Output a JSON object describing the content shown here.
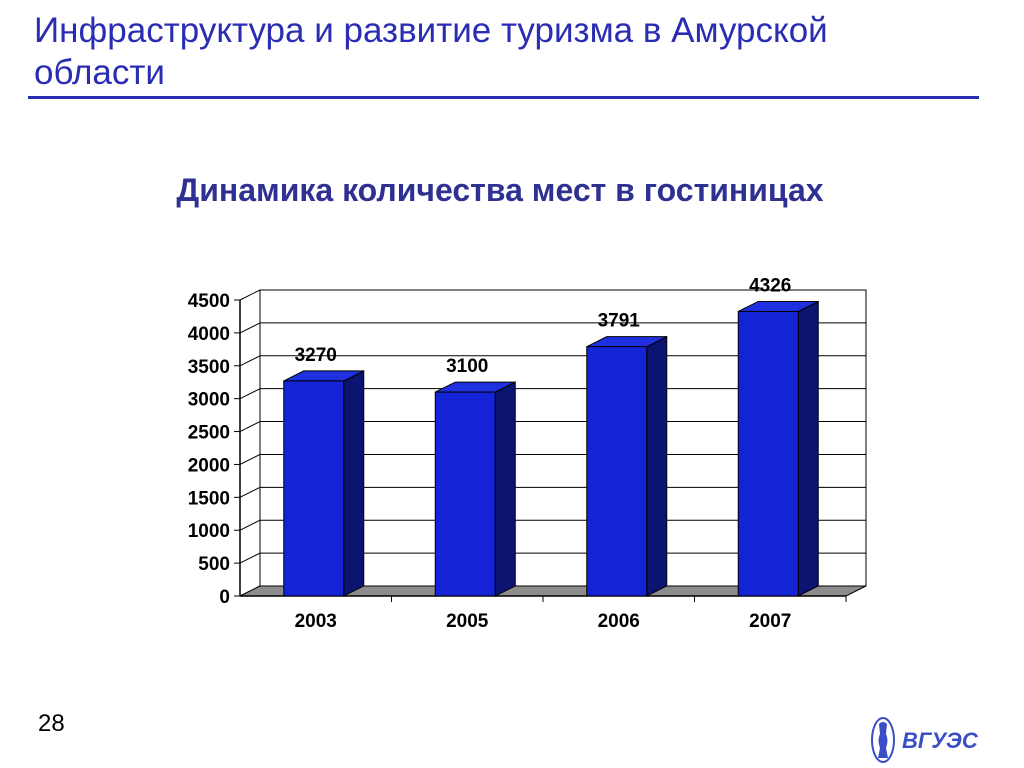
{
  "slide": {
    "title": "Инфраструктура и развитие туризма в Амурской области",
    "page_number": "28",
    "logo_text": "ВГУЭС"
  },
  "colors": {
    "title": "#2a2db3",
    "heading": "#2e3192",
    "bar_front": "#1423d6",
    "bar_side": "#0b1470",
    "bar_top": "#1f30e0",
    "floor": "#8c8c8c",
    "gridline": "#000000"
  },
  "chart_data": {
    "type": "bar",
    "title": "Динамика количества  мест в гостиницах",
    "xlabel": "",
    "ylabel": "",
    "categories": [
      "2003",
      "2005",
      "2006",
      "2007"
    ],
    "values": [
      3270,
      3100,
      3791,
      4326
    ],
    "ylim": [
      0,
      4500
    ],
    "yticks": [
      0,
      500,
      1000,
      1500,
      2000,
      2500,
      3000,
      3500,
      4000,
      4500
    ],
    "grid": true,
    "legend": "none",
    "style": "3d-column"
  }
}
